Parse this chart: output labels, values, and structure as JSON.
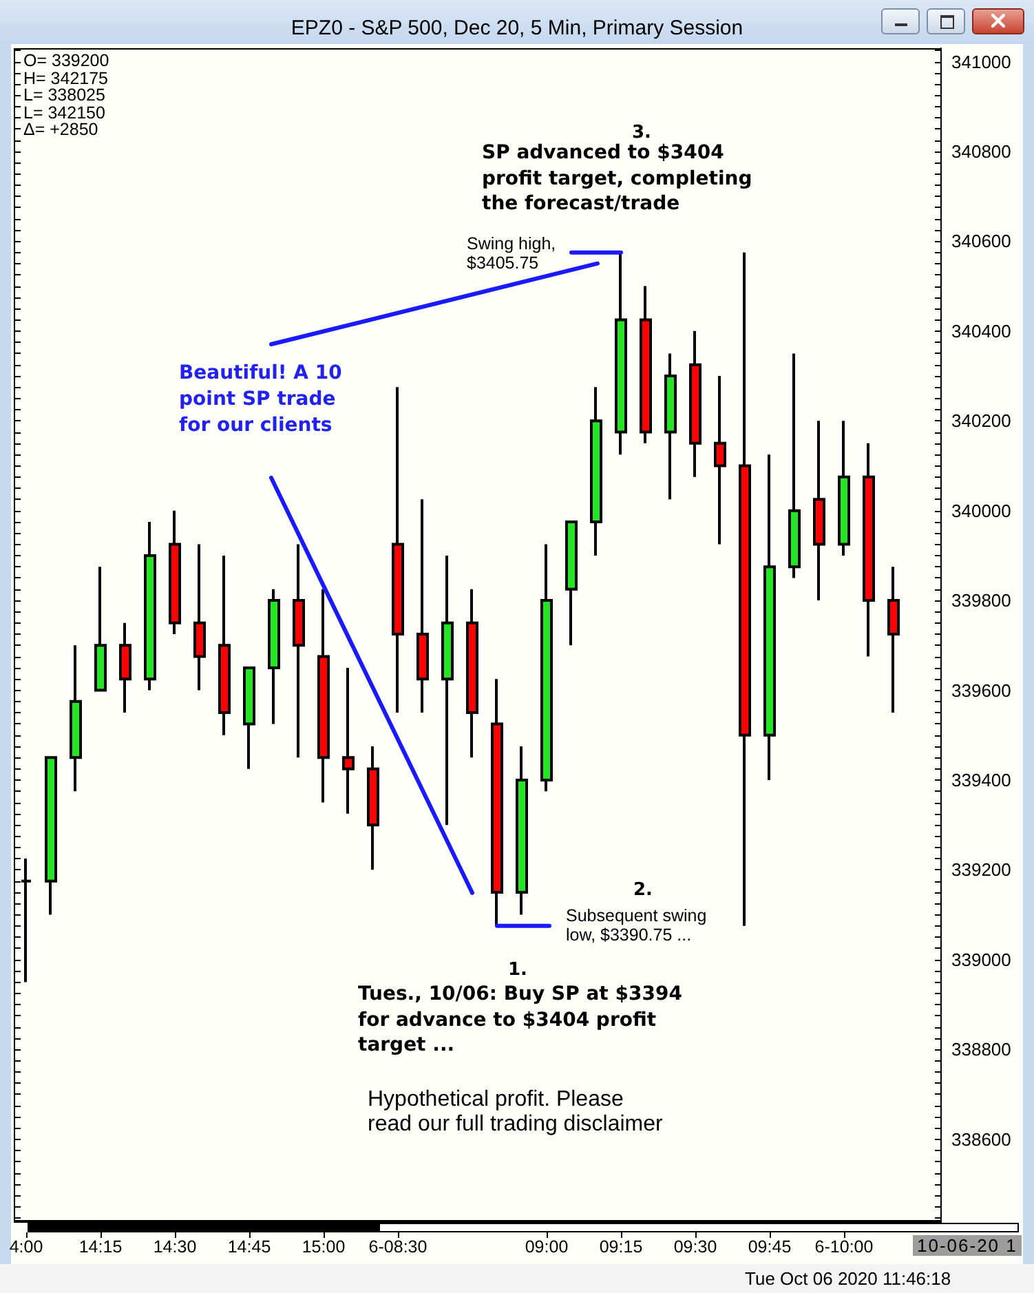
{
  "chart_data": {
    "type": "candlestick",
    "title": "EPZ0 - S&P 500, Dec 20, 5 Min, Primary Session",
    "categories": [
      "4:00",
      null,
      null,
      "14:15",
      null,
      null,
      "14:30",
      null,
      null,
      "14:45",
      null,
      null,
      "15:00",
      null,
      null,
      "6-08:30",
      null,
      null,
      null,
      null,
      null,
      "09:00",
      null,
      null,
      "09:15",
      null,
      null,
      "09:30",
      null,
      null,
      "09:45",
      null,
      null,
      "6-10:00",
      null,
      null
    ],
    "ohlc": [
      [
        339175,
        339225,
        338950,
        339175
      ],
      [
        339175,
        339450,
        339100,
        339450
      ],
      [
        339450,
        339700,
        339375,
        339575
      ],
      [
        339600,
        339875,
        339600,
        339700
      ],
      [
        339700,
        339750,
        339550,
        339625
      ],
      [
        339625,
        339975,
        339600,
        339900
      ],
      [
        339925,
        340000,
        339725,
        339750
      ],
      [
        339750,
        339925,
        339600,
        339675
      ],
      [
        339700,
        339900,
        339500,
        339550
      ],
      [
        339525,
        339650,
        339425,
        339650
      ],
      [
        339650,
        339825,
        339525,
        339800
      ],
      [
        339800,
        339925,
        339450,
        339700
      ],
      [
        339675,
        339825,
        339350,
        339450
      ],
      [
        339450,
        339650,
        339325,
        339425
      ],
      [
        339425,
        339475,
        339200,
        339300
      ],
      [
        339925,
        340275,
        339550,
        339725
      ],
      [
        339725,
        340025,
        339550,
        339625
      ],
      [
        339625,
        339900,
        339300,
        339750
      ],
      [
        339750,
        339825,
        339450,
        339550
      ],
      [
        339525,
        339625,
        339075,
        339150
      ],
      [
        339150,
        339475,
        339100,
        339400
      ],
      [
        339400,
        339925,
        339375,
        339800
      ],
      [
        339825,
        339975,
        339700,
        339975
      ],
      [
        339975,
        340275,
        339900,
        340200
      ],
      [
        340175,
        340575,
        340125,
        340425
      ],
      [
        340425,
        340500,
        340150,
        340175
      ],
      [
        340175,
        340350,
        340025,
        340300
      ],
      [
        340325,
        340400,
        340075,
        340150
      ],
      [
        340150,
        340300,
        339925,
        340100
      ],
      [
        340100,
        340575,
        339075,
        339500
      ],
      [
        339500,
        340125,
        339400,
        339875
      ],
      [
        339875,
        340350,
        339850,
        340000
      ],
      [
        340025,
        340200,
        339800,
        339925
      ],
      [
        339925,
        340200,
        339900,
        340075
      ],
      [
        340075,
        340150,
        339675,
        339800
      ],
      [
        339800,
        339875,
        339550,
        339725
      ]
    ],
    "colors": [
      "#000000",
      "#22e622",
      "#22e622",
      "#22e622",
      "#ff0000",
      "#22e622",
      "#ff0000",
      "#ff0000",
      "#ff0000",
      "#22e622",
      "#22e622",
      "#ff0000",
      "#ff0000",
      "#ff0000",
      "#ff0000",
      "#ff0000",
      "#ff0000",
      "#22e622",
      "#ff0000",
      "#ff0000",
      "#22e622",
      "#22e622",
      "#22e622",
      "#22e622",
      "#22e622",
      "#ff0000",
      "#22e622",
      "#ff0000",
      "#ff0000",
      "#ff0000",
      "#22e622",
      "#22e622",
      "#ff0000",
      "#22e622",
      "#ff0000",
      "#ff0000"
    ],
    "ylim": [
      338420,
      341030
    ],
    "yticks": [
      338600,
      338800,
      339000,
      339200,
      339400,
      339600,
      339800,
      340000,
      340200,
      340400,
      340600,
      340800,
      341000
    ],
    "grid": false,
    "annotations": [
      "O= 339200",
      "H= 342175",
      "L= 338025",
      "L= 342150",
      "Δ= +2850",
      "3.",
      "SP advanced to $3404 profit target, completing the forecast/trade",
      {
        "text": "Swing high, $3405.75",
        "x": "09:15",
        "y": 340575
      },
      "Beautiful! A 10 point SP trade for our clients",
      "2.",
      "Subsequent swing low, $3390.75 ...",
      "1.",
      "Tues., 10/06: Buy SP at $3394 for advance to $3404 profit target ...",
      "Hypothetical profit. Please read our full trading disclaimer",
      "10-06-20 1",
      "Tue Oct 06 2020 11:46:18"
    ]
  }
}
